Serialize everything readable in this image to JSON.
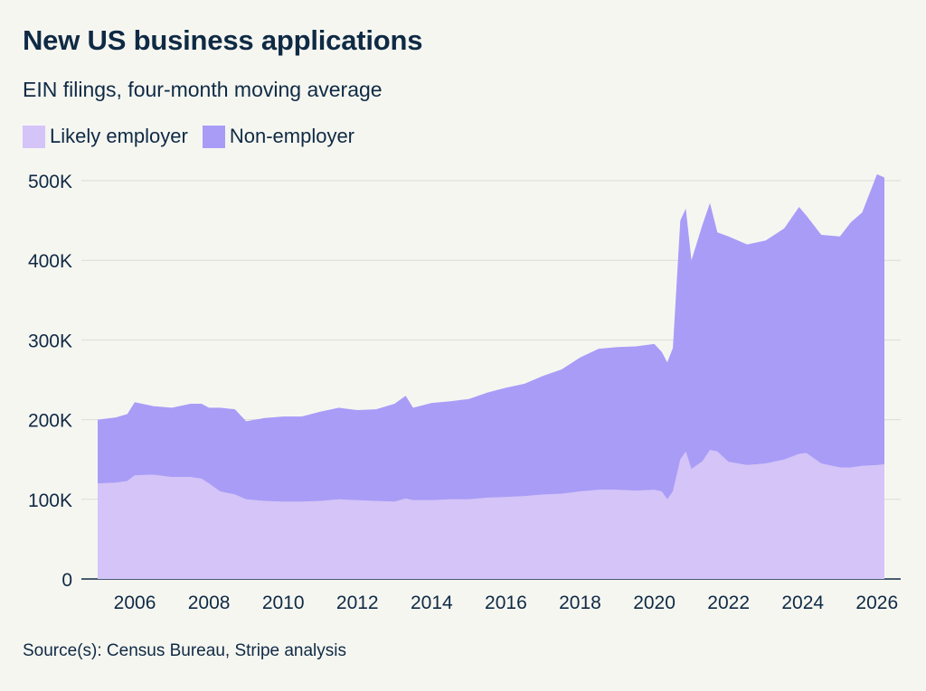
{
  "header": {
    "title": "New US business applications",
    "subtitle": "EIN filings, four-month moving average"
  },
  "legend": {
    "items": [
      {
        "label": "Likely employer",
        "color": "#d4c4f7"
      },
      {
        "label": "Non-employer",
        "color": "#a99cf7"
      }
    ]
  },
  "footer": {
    "source": "Source(s): Census Bureau, Stripe analysis"
  },
  "chart_data": {
    "type": "area",
    "stacked": true,
    "grid": true,
    "y_ticks": [
      0,
      100000,
      200000,
      300000,
      400000,
      500000
    ],
    "y_tick_labels": [
      "0",
      "100K",
      "200K",
      "300K",
      "400K",
      "500K"
    ],
    "x_ticks": [
      2006,
      2008,
      2010,
      2012,
      2014,
      2016,
      2018,
      2020,
      2022,
      2024,
      2026
    ],
    "x_tick_labels": [
      "2006",
      "2008",
      "2010",
      "2012",
      "2014",
      "2016",
      "2018",
      "2020",
      "2022",
      "2024",
      "2026"
    ],
    "x_range": [
      2005.0,
      2026.2
    ],
    "ylim": [
      0,
      500000
    ],
    "series": [
      {
        "name": "Likely employer",
        "color": "#d4c4f7",
        "points": [
          [
            2005.0,
            120000
          ],
          [
            2005.5,
            121000
          ],
          [
            2005.8,
            123000
          ],
          [
            2006.0,
            130000
          ],
          [
            2006.5,
            131000
          ],
          [
            2007.0,
            128000
          ],
          [
            2007.5,
            128000
          ],
          [
            2007.8,
            126000
          ],
          [
            2008.0,
            120000
          ],
          [
            2008.3,
            110000
          ],
          [
            2008.7,
            106000
          ],
          [
            2009.0,
            100000
          ],
          [
            2009.5,
            98000
          ],
          [
            2010.0,
            97000
          ],
          [
            2010.5,
            97000
          ],
          [
            2011.0,
            98000
          ],
          [
            2011.5,
            100000
          ],
          [
            2012.0,
            99000
          ],
          [
            2012.5,
            98000
          ],
          [
            2013.0,
            97000
          ],
          [
            2013.3,
            101000
          ],
          [
            2013.5,
            99000
          ],
          [
            2014.0,
            99000
          ],
          [
            2014.5,
            100000
          ],
          [
            2015.0,
            100000
          ],
          [
            2015.5,
            102000
          ],
          [
            2016.0,
            103000
          ],
          [
            2016.5,
            104000
          ],
          [
            2017.0,
            106000
          ],
          [
            2017.5,
            107000
          ],
          [
            2018.0,
            110000
          ],
          [
            2018.5,
            112000
          ],
          [
            2019.0,
            112000
          ],
          [
            2019.5,
            111000
          ],
          [
            2020.0,
            112000
          ],
          [
            2020.2,
            110000
          ],
          [
            2020.35,
            100000
          ],
          [
            2020.5,
            110000
          ],
          [
            2020.7,
            150000
          ],
          [
            2020.85,
            160000
          ],
          [
            2021.0,
            138000
          ],
          [
            2021.3,
            148000
          ],
          [
            2021.5,
            162000
          ],
          [
            2021.7,
            160000
          ],
          [
            2022.0,
            147000
          ],
          [
            2022.5,
            143000
          ],
          [
            2023.0,
            145000
          ],
          [
            2023.5,
            150000
          ],
          [
            2023.9,
            157000
          ],
          [
            2024.1,
            158000
          ],
          [
            2024.5,
            145000
          ],
          [
            2025.0,
            140000
          ],
          [
            2025.3,
            140000
          ],
          [
            2025.6,
            142000
          ],
          [
            2026.0,
            143000
          ],
          [
            2026.2,
            144000
          ]
        ]
      },
      {
        "name": "Non-employer",
        "color": "#a99cf7",
        "points": [
          [
            2005.0,
            80000
          ],
          [
            2005.5,
            82000
          ],
          [
            2005.8,
            84000
          ],
          [
            2006.0,
            92000
          ],
          [
            2006.5,
            86000
          ],
          [
            2007.0,
            87000
          ],
          [
            2007.5,
            92000
          ],
          [
            2007.8,
            94000
          ],
          [
            2008.0,
            95000
          ],
          [
            2008.3,
            105000
          ],
          [
            2008.7,
            107000
          ],
          [
            2009.0,
            98000
          ],
          [
            2009.5,
            104000
          ],
          [
            2010.0,
            107000
          ],
          [
            2010.5,
            107000
          ],
          [
            2011.0,
            112000
          ],
          [
            2011.5,
            115000
          ],
          [
            2012.0,
            113000
          ],
          [
            2012.5,
            115000
          ],
          [
            2013.0,
            123000
          ],
          [
            2013.3,
            129000
          ],
          [
            2013.5,
            116000
          ],
          [
            2014.0,
            122000
          ],
          [
            2014.5,
            123000
          ],
          [
            2015.0,
            126000
          ],
          [
            2015.5,
            132000
          ],
          [
            2016.0,
            137000
          ],
          [
            2016.5,
            141000
          ],
          [
            2017.0,
            149000
          ],
          [
            2017.5,
            156000
          ],
          [
            2018.0,
            168000
          ],
          [
            2018.5,
            177000
          ],
          [
            2019.0,
            179000
          ],
          [
            2019.5,
            181000
          ],
          [
            2020.0,
            183000
          ],
          [
            2020.2,
            175000
          ],
          [
            2020.35,
            172000
          ],
          [
            2020.5,
            180000
          ],
          [
            2020.7,
            300000
          ],
          [
            2020.85,
            305000
          ],
          [
            2021.0,
            262000
          ],
          [
            2021.3,
            297000
          ],
          [
            2021.5,
            310000
          ],
          [
            2021.7,
            275000
          ],
          [
            2022.0,
            283000
          ],
          [
            2022.5,
            277000
          ],
          [
            2023.0,
            280000
          ],
          [
            2023.5,
            290000
          ],
          [
            2023.9,
            310000
          ],
          [
            2024.1,
            298000
          ],
          [
            2024.5,
            287000
          ],
          [
            2025.0,
            290000
          ],
          [
            2025.3,
            308000
          ],
          [
            2025.6,
            318000
          ],
          [
            2026.0,
            365000
          ],
          [
            2026.2,
            360000
          ]
        ]
      }
    ]
  }
}
